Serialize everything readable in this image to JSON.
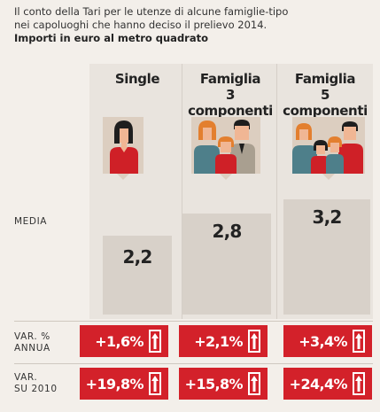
{
  "header": {
    "title_line1": "Il conto della Tari per le utenze di alcune famiglie-tipo",
    "title_line2": "nei capoluoghi che hanno deciso il prelievo 2014.",
    "subtitle": "Importi in euro al metro quadrato"
  },
  "colors": {
    "background": "#f3efea",
    "column_bg": "#e9e4de",
    "bar": "#d8d1c9",
    "icon_box": "#dccec0",
    "var_red": "#d3212a"
  },
  "rows": {
    "media_label": "MEDIA",
    "var_annua_line1": "VAR. %",
    "var_annua_line2": "ANNUA",
    "var_2010_line1": "VAR.",
    "var_2010_line2": "SU 2010"
  },
  "chart_data": {
    "type": "bar",
    "categories": [
      "Single",
      "Famiglia 3 componenti",
      "Famiglia 5 componenti"
    ],
    "category_lines": [
      [
        "Single"
      ],
      [
        "Famiglia",
        "3 componenti"
      ],
      [
        "Famiglia",
        "5 componenti"
      ]
    ],
    "series": [
      {
        "values": [
          2.2,
          2.8,
          3.2
        ],
        "labels": [
          "2,2",
          "2,8",
          "3,2"
        ]
      }
    ],
    "var_annua": [
      "+1,6%",
      "+2,1%",
      "+3,4%"
    ],
    "var_2010": [
      "+19,8%",
      "+15,8%",
      "+24,4%"
    ],
    "icons": [
      "single-person-icon",
      "family-3-icon",
      "family-5-icon"
    ],
    "ylim": [
      0,
      3.5
    ]
  }
}
